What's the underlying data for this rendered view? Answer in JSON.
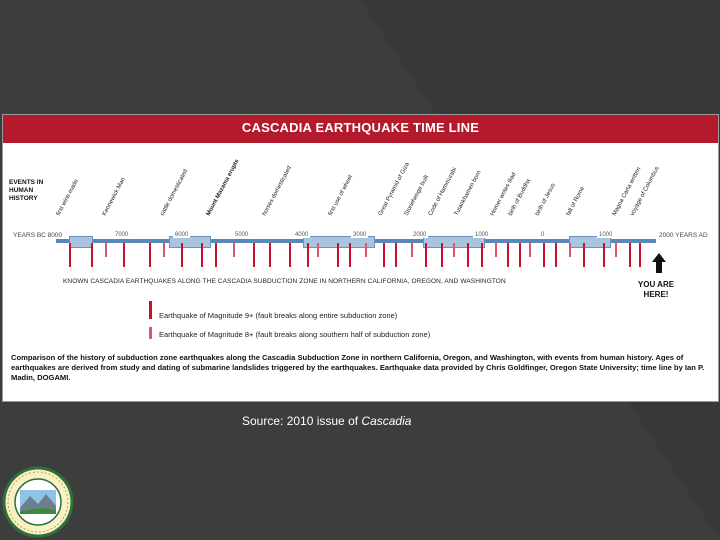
{
  "figure": {
    "title": "CASCADIA EARTHQUAKE TIME LINE",
    "events_label": [
      "EVENTS IN",
      "HUMAN",
      "HISTORY"
    ],
    "events": [
      {
        "label": "first wine made",
        "bold": false
      },
      {
        "label": "Kennewick Man",
        "bold": false
      },
      {
        "label": "cattle domesticated",
        "bold": false
      },
      {
        "label": "Mount Mazama erupts",
        "bold": true
      },
      {
        "label": "horses domesticated",
        "bold": false
      },
      {
        "label": "first use of wheel",
        "bold": false
      },
      {
        "label": "Great Pyramid of Giza",
        "bold": false
      },
      {
        "label": "Stonehenge built",
        "bold": false
      },
      {
        "label": "Code of Hammurabi",
        "bold": false
      },
      {
        "label": "Tutankhamen born",
        "bold": false
      },
      {
        "label": "Homer writes Iliad",
        "bold": false
      },
      {
        "label": "birth of Buddha",
        "bold": false
      },
      {
        "label": "birth of Jesus",
        "bold": false
      },
      {
        "label": "fall of Rome",
        "bold": false
      },
      {
        "label": "Magna Carta written",
        "bold": false
      },
      {
        "label": "voyage of Columbus",
        "bold": false
      }
    ],
    "axis": {
      "start_label": "YEARS BC 8000",
      "end_label": "2000 YEARS AD",
      "ticks": [
        "7000",
        "6000",
        "5000",
        "4000",
        "3000",
        "2000",
        "1000",
        "0",
        "1000"
      ]
    },
    "known_label": "KNOWN CASCADIA EARTHQUAKES ALONG THE CASCADIA SUBDUCTION ZONE IN NORTHERN CALIFORNIA, OREGON, AND WASHINGTON",
    "here_label": [
      "YOU ARE",
      "HERE!"
    ],
    "legend": [
      {
        "label": "Earthquake of Magnitude 9+ (fault breaks along entire subduction zone)"
      },
      {
        "label": "Earthquake of Magnitude 8+ (fault breaks along southern half of subduction zone)"
      }
    ],
    "caption": "Comparison of the history of subduction zone earthquakes along the Cascadia Subduction Zone in northern California, Oregon, and Washington, with events from human history. Ages of earthquakes are derived from study and dating of submarine landslides triggered by the earthquakes. Earthquake data provided by Chris Goldfinger, Oregon State University; time line by Ian P. Madin, DOGAMI.",
    "colors": {
      "title_band": "#b31b2c",
      "axis": "#5b87b8",
      "quake": "#c8102e"
    }
  },
  "source": {
    "prefix": "Source: 2010 issue of ",
    "publication": "Cascadia"
  },
  "seal": {
    "icon": "agency-seal-icon"
  }
}
